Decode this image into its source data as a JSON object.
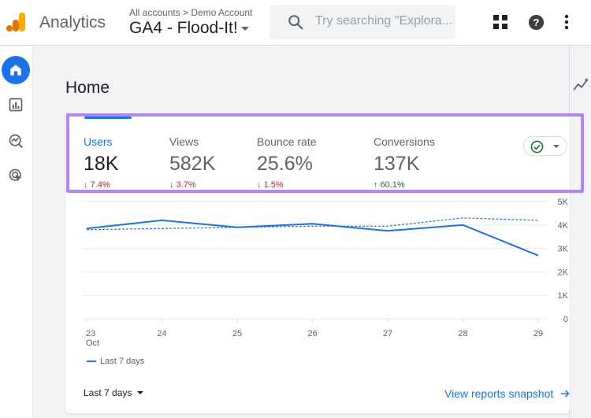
{
  "header": {
    "brand": "Analytics",
    "breadcrumb": "All accounts > Demo Account",
    "property_name": "GA4 - Flood-It!",
    "search_placeholder": "Try searching \"Explora..."
  },
  "page": {
    "title": "Home"
  },
  "metrics": [
    {
      "label": "Users",
      "value": "18K",
      "delta": "7.4%",
      "direction": "down",
      "arrow": "↓"
    },
    {
      "label": "Views",
      "value": "582K",
      "delta": "3.7%",
      "direction": "down",
      "arrow": "↓"
    },
    {
      "label": "Bounce rate",
      "value": "25.6%",
      "delta": "1.5%",
      "direction": "down",
      "arrow": "↓"
    },
    {
      "label": "Conversions",
      "value": "137K",
      "delta": "60.1%",
      "direction": "up",
      "arrow": "↑"
    }
  ],
  "chart_data": {
    "type": "line",
    "categories": [
      "23",
      "24",
      "25",
      "26",
      "27",
      "28",
      "29"
    ],
    "x_sublabel": "Oct",
    "y_ticks": [
      "5K",
      "4K",
      "3K",
      "2K",
      "1K",
      "0"
    ],
    "ylim": [
      0,
      5000
    ],
    "series": [
      {
        "name": "Last 7 days",
        "style": "solid",
        "color": "#1a73e8",
        "values": [
          3850,
          4200,
          3900,
          4050,
          3750,
          4000,
          2700
        ]
      },
      {
        "style": "dashed",
        "color": "#1a73e8",
        "values": [
          3800,
          3850,
          3900,
          3950,
          3950,
          4300,
          4200
        ]
      }
    ],
    "legend_placement": "bottom-left"
  },
  "footer": {
    "range_label": "Last 7 days",
    "snapshot_link": "View reports snapshot"
  },
  "colors": {
    "accent": "#1a73e8",
    "highlight": "#b485f3",
    "down": "#c5221f",
    "up": "#137333"
  }
}
